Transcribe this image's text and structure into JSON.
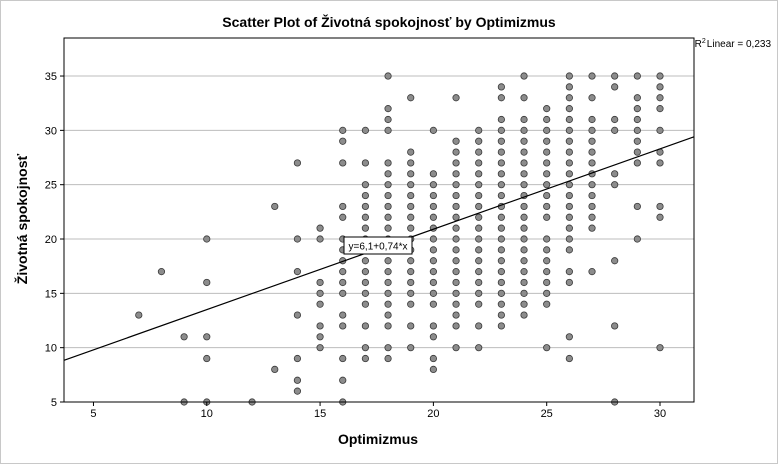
{
  "chart_data": {
    "type": "scatter",
    "title": "Scatter Plot of Životná spokojnosť by Optimizmus",
    "xlabel": "Optimizmus",
    "ylabel": "Životná spokojnosť",
    "xlim": [
      3.7,
      31.5
    ],
    "ylim": [
      5,
      38.5
    ],
    "xticks": [
      5,
      10,
      15,
      20,
      25,
      30
    ],
    "yticks": [
      5,
      10,
      15,
      20,
      25,
      30,
      35
    ],
    "grid": "horizontal",
    "point_color": "#8c8c8c",
    "point_edge": "#3a3a3a",
    "line_color": "#000000",
    "fit_line": {
      "intercept": 6.1,
      "slope": 0.74,
      "label": "y=6,1+0,74*x"
    },
    "r2_label": "Linear = 0,233",
    "r2_prefix": "R",
    "r2_sup": "2",
    "points": [
      [
        7,
        13
      ],
      [
        8,
        17
      ],
      [
        9,
        11
      ],
      [
        9,
        5
      ],
      [
        10,
        20
      ],
      [
        10,
        16
      ],
      [
        10,
        11
      ],
      [
        10,
        9
      ],
      [
        10,
        5
      ],
      [
        12,
        5
      ],
      [
        13,
        23
      ],
      [
        13,
        8
      ],
      [
        14,
        27
      ],
      [
        14,
        20
      ],
      [
        14,
        17
      ],
      [
        14,
        13
      ],
      [
        14,
        9
      ],
      [
        14,
        7
      ],
      [
        14,
        6
      ],
      [
        15,
        21
      ],
      [
        15,
        20
      ],
      [
        15,
        16
      ],
      [
        15,
        15
      ],
      [
        15,
        14
      ],
      [
        15,
        12
      ],
      [
        15,
        11
      ],
      [
        15,
        10
      ],
      [
        16,
        30
      ],
      [
        16,
        29
      ],
      [
        16,
        27
      ],
      [
        16,
        23
      ],
      [
        16,
        22
      ],
      [
        16,
        20
      ],
      [
        16,
        19
      ],
      [
        16,
        18
      ],
      [
        16,
        17
      ],
      [
        16,
        16
      ],
      [
        16,
        15
      ],
      [
        16,
        13
      ],
      [
        16,
        12
      ],
      [
        16,
        9
      ],
      [
        16,
        7
      ],
      [
        16,
        5
      ],
      [
        17,
        30
      ],
      [
        17,
        27
      ],
      [
        17,
        25
      ],
      [
        17,
        24
      ],
      [
        17,
        23
      ],
      [
        17,
        22
      ],
      [
        17,
        21
      ],
      [
        17,
        20
      ],
      [
        17,
        19
      ],
      [
        17,
        18
      ],
      [
        17,
        17
      ],
      [
        17,
        16
      ],
      [
        17,
        15
      ],
      [
        17,
        14
      ],
      [
        17,
        12
      ],
      [
        17,
        10
      ],
      [
        17,
        9
      ],
      [
        18,
        35
      ],
      [
        18,
        32
      ],
      [
        18,
        31
      ],
      [
        18,
        30
      ],
      [
        18,
        27
      ],
      [
        18,
        26
      ],
      [
        18,
        25
      ],
      [
        18,
        24
      ],
      [
        18,
        23
      ],
      [
        18,
        22
      ],
      [
        18,
        21
      ],
      [
        18,
        20
      ],
      [
        18,
        19
      ],
      [
        18,
        18
      ],
      [
        18,
        17
      ],
      [
        18,
        16
      ],
      [
        18,
        15
      ],
      [
        18,
        14
      ],
      [
        18,
        13
      ],
      [
        18,
        12
      ],
      [
        18,
        10
      ],
      [
        18,
        9
      ],
      [
        19,
        33
      ],
      [
        19,
        28
      ],
      [
        19,
        27
      ],
      [
        19,
        26
      ],
      [
        19,
        25
      ],
      [
        19,
        24
      ],
      [
        19,
        23
      ],
      [
        19,
        22
      ],
      [
        19,
        21
      ],
      [
        19,
        20
      ],
      [
        19,
        19
      ],
      [
        19,
        18
      ],
      [
        19,
        17
      ],
      [
        19,
        16
      ],
      [
        19,
        15
      ],
      [
        19,
        14
      ],
      [
        19,
        12
      ],
      [
        19,
        10
      ],
      [
        20,
        30
      ],
      [
        20,
        26
      ],
      [
        20,
        25
      ],
      [
        20,
        24
      ],
      [
        20,
        23
      ],
      [
        20,
        22
      ],
      [
        20,
        21
      ],
      [
        20,
        20
      ],
      [
        20,
        19
      ],
      [
        20,
        18
      ],
      [
        20,
        17
      ],
      [
        20,
        16
      ],
      [
        20,
        15
      ],
      [
        20,
        14
      ],
      [
        20,
        12
      ],
      [
        20,
        11
      ],
      [
        20,
        9
      ],
      [
        20,
        8
      ],
      [
        21,
        33
      ],
      [
        21,
        29
      ],
      [
        21,
        28
      ],
      [
        21,
        27
      ],
      [
        21,
        26
      ],
      [
        21,
        25
      ],
      [
        21,
        24
      ],
      [
        21,
        23
      ],
      [
        21,
        22
      ],
      [
        21,
        21
      ],
      [
        21,
        20
      ],
      [
        21,
        19
      ],
      [
        21,
        18
      ],
      [
        21,
        17
      ],
      [
        21,
        16
      ],
      [
        21,
        15
      ],
      [
        21,
        14
      ],
      [
        21,
        13
      ],
      [
        21,
        12
      ],
      [
        21,
        10
      ],
      [
        22,
        30
      ],
      [
        22,
        29
      ],
      [
        22,
        28
      ],
      [
        22,
        27
      ],
      [
        22,
        26
      ],
      [
        22,
        25
      ],
      [
        22,
        24
      ],
      [
        22,
        23
      ],
      [
        22,
        22
      ],
      [
        22,
        21
      ],
      [
        22,
        20
      ],
      [
        22,
        19
      ],
      [
        22,
        18
      ],
      [
        22,
        17
      ],
      [
        22,
        16
      ],
      [
        22,
        15
      ],
      [
        22,
        14
      ],
      [
        22,
        12
      ],
      [
        22,
        10
      ],
      [
        23,
        34
      ],
      [
        23,
        33
      ],
      [
        23,
        31
      ],
      [
        23,
        30
      ],
      [
        23,
        29
      ],
      [
        23,
        28
      ],
      [
        23,
        27
      ],
      [
        23,
        26
      ],
      [
        23,
        25
      ],
      [
        23,
        24
      ],
      [
        23,
        23
      ],
      [
        23,
        22
      ],
      [
        23,
        21
      ],
      [
        23,
        20
      ],
      [
        23,
        19
      ],
      [
        23,
        18
      ],
      [
        23,
        17
      ],
      [
        23,
        16
      ],
      [
        23,
        15
      ],
      [
        23,
        14
      ],
      [
        23,
        13
      ],
      [
        23,
        12
      ],
      [
        24,
        35
      ],
      [
        24,
        33
      ],
      [
        24,
        31
      ],
      [
        24,
        30
      ],
      [
        24,
        29
      ],
      [
        24,
        28
      ],
      [
        24,
        27
      ],
      [
        24,
        26
      ],
      [
        24,
        25
      ],
      [
        24,
        24
      ],
      [
        24,
        23
      ],
      [
        24,
        22
      ],
      [
        24,
        21
      ],
      [
        24,
        20
      ],
      [
        24,
        19
      ],
      [
        24,
        18
      ],
      [
        24,
        17
      ],
      [
        24,
        16
      ],
      [
        24,
        15
      ],
      [
        24,
        14
      ],
      [
        24,
        13
      ],
      [
        25,
        32
      ],
      [
        25,
        31
      ],
      [
        25,
        30
      ],
      [
        25,
        29
      ],
      [
        25,
        28
      ],
      [
        25,
        27
      ],
      [
        25,
        26
      ],
      [
        25,
        25
      ],
      [
        25,
        24
      ],
      [
        25,
        23
      ],
      [
        25,
        22
      ],
      [
        25,
        20
      ],
      [
        25,
        19
      ],
      [
        25,
        18
      ],
      [
        25,
        17
      ],
      [
        25,
        16
      ],
      [
        25,
        15
      ],
      [
        25,
        14
      ],
      [
        25,
        10
      ],
      [
        26,
        35
      ],
      [
        26,
        34
      ],
      [
        26,
        33
      ],
      [
        26,
        32
      ],
      [
        26,
        31
      ],
      [
        26,
        30
      ],
      [
        26,
        29
      ],
      [
        26,
        28
      ],
      [
        26,
        27
      ],
      [
        26,
        26
      ],
      [
        26,
        25
      ],
      [
        26,
        24
      ],
      [
        26,
        23
      ],
      [
        26,
        22
      ],
      [
        26,
        21
      ],
      [
        26,
        20
      ],
      [
        26,
        19
      ],
      [
        26,
        17
      ],
      [
        26,
        16
      ],
      [
        26,
        11
      ],
      [
        26,
        9
      ],
      [
        27,
        35
      ],
      [
        27,
        33
      ],
      [
        27,
        31
      ],
      [
        27,
        30
      ],
      [
        27,
        29
      ],
      [
        27,
        28
      ],
      [
        27,
        27
      ],
      [
        27,
        26
      ],
      [
        27,
        25
      ],
      [
        27,
        24
      ],
      [
        27,
        23
      ],
      [
        27,
        22
      ],
      [
        27,
        21
      ],
      [
        27,
        17
      ],
      [
        28,
        35
      ],
      [
        28,
        34
      ],
      [
        28,
        31
      ],
      [
        28,
        30
      ],
      [
        28,
        26
      ],
      [
        28,
        25
      ],
      [
        28,
        18
      ],
      [
        28,
        12
      ],
      [
        28,
        5
      ],
      [
        29,
        35
      ],
      [
        29,
        33
      ],
      [
        29,
        32
      ],
      [
        29,
        31
      ],
      [
        29,
        30
      ],
      [
        29,
        29
      ],
      [
        29,
        28
      ],
      [
        29,
        27
      ],
      [
        29,
        23
      ],
      [
        29,
        20
      ],
      [
        30,
        35
      ],
      [
        30,
        34
      ],
      [
        30,
        33
      ],
      [
        30,
        32
      ],
      [
        30,
        30
      ],
      [
        30,
        28
      ],
      [
        30,
        27
      ],
      [
        30,
        23
      ],
      [
        30,
        22
      ],
      [
        30,
        10
      ]
    ]
  }
}
